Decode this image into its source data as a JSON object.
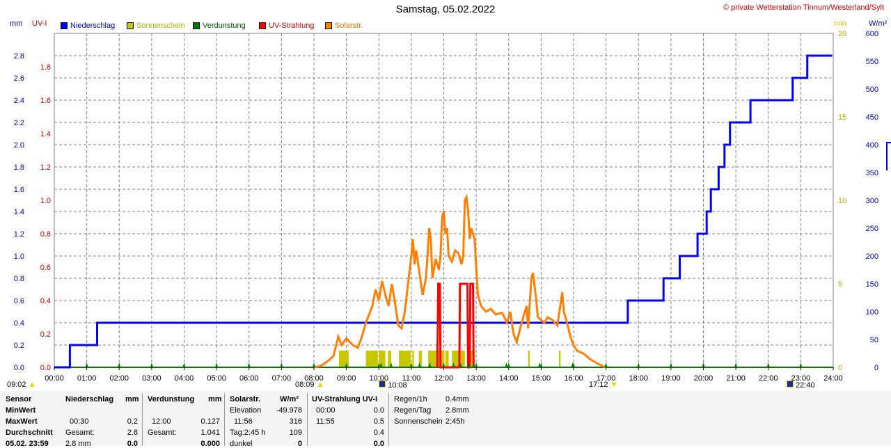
{
  "title": "Samstag, 05.02.2022",
  "copyright": "© private Wetterstation Tinnum/Westerland/Sylt",
  "axis_units": {
    "left_mm": "mm",
    "left_uvi": "UV-I",
    "right_min": "min",
    "right_wm2": "W/m²"
  },
  "legend": [
    {
      "label": "Niederschlag",
      "color": "#0000ff"
    },
    {
      "label": "Sonnenschein",
      "color": "#c8c800"
    },
    {
      "label": "Verdunstung",
      "color": "#007a00"
    },
    {
      "label": "UV-Strahlung",
      "color": "#ff0000"
    },
    {
      "label": "Solarstr.",
      "color": "#ff8000"
    }
  ],
  "colors": {
    "precip": "#0000ff",
    "uv": "#cc0000",
    "sun": "#c8c800",
    "evap": "#007a00",
    "solar": "#ff8000",
    "grid": "#808080"
  },
  "x_ticks": [
    "00:00",
    "01:00",
    "02:00",
    "03:00",
    "04:00",
    "05:00",
    "06:00",
    "07:00",
    "08:00",
    "09:00",
    "10:00",
    "11:00",
    "12:00",
    "13:00",
    "14:00",
    "15:00",
    "16:00",
    "17:00",
    "18:00",
    "19:00",
    "20:00",
    "21:00",
    "22:00",
    "23:00",
    "24:00"
  ],
  "y_ticks_mm": [
    "0.0",
    "0.2",
    "0.4",
    "0.6",
    "0.8",
    "1.0",
    "1.2",
    "1.4",
    "1.6",
    "1.8",
    "2.0",
    "2.2",
    "2.4",
    "2.6",
    "2.8"
  ],
  "y_ticks_uv": [
    "0.0",
    "0.2",
    "0.4",
    "0.6",
    "0.8",
    "1.0",
    "1.2",
    "1.4",
    "1.6",
    "1.8"
  ],
  "y_ticks_min": [
    "0",
    "5",
    "10",
    "15",
    "20"
  ],
  "y_ticks_wm2": [
    "0",
    "50",
    "100",
    "150",
    "200",
    "250",
    "300",
    "350",
    "400",
    "450",
    "500",
    "550",
    "600"
  ],
  "events": {
    "first_time": "09:02",
    "sunrise": "08:09",
    "uv_event": "10:08",
    "sunset": "17:12",
    "last_time": "22:40"
  },
  "chart_data": {
    "type": "line",
    "title": "Samstag, 05.02.2022",
    "x_range_hours": [
      0,
      24
    ],
    "ylim_mm": [
      0,
      3.0
    ],
    "ylim_uvi": [
      0,
      2.0
    ],
    "ylim_min": [
      0,
      20
    ],
    "ylim_wm2": [
      0,
      600
    ],
    "grid": true,
    "legend_position": "top",
    "series": [
      {
        "name": "Niederschlag",
        "axis": "mm",
        "step": true,
        "points": [
          [
            0,
            0
          ],
          [
            0.48,
            0
          ],
          [
            0.48,
            0.2
          ],
          [
            1.32,
            0.2
          ],
          [
            1.32,
            0.4
          ],
          [
            17.67,
            0.4
          ],
          [
            17.67,
            0.6
          ],
          [
            18.77,
            0.6
          ],
          [
            18.77,
            0.8
          ],
          [
            19.27,
            0.8
          ],
          [
            19.27,
            1.0
          ],
          [
            19.82,
            1.0
          ],
          [
            19.82,
            1.2
          ],
          [
            20.1,
            1.2
          ],
          [
            20.1,
            1.4
          ],
          [
            20.23,
            1.4
          ],
          [
            20.23,
            1.6
          ],
          [
            20.47,
            1.6
          ],
          [
            20.47,
            1.8
          ],
          [
            20.65,
            1.8
          ],
          [
            20.65,
            2.0
          ],
          [
            20.82,
            2.0
          ],
          [
            20.82,
            2.2
          ],
          [
            21.45,
            2.2
          ],
          [
            21.45,
            2.4
          ],
          [
            22.75,
            2.4
          ],
          [
            22.75,
            2.6
          ],
          [
            23.2,
            2.6
          ],
          [
            23.2,
            2.8
          ],
          [
            23.97,
            2.8
          ]
        ]
      },
      {
        "name": "UV-Strahlung",
        "axis": "uvi",
        "points": [
          [
            11.8,
            0
          ],
          [
            11.83,
            0.5
          ],
          [
            11.88,
            0.5
          ],
          [
            11.9,
            0
          ],
          [
            12.48,
            0
          ],
          [
            12.5,
            0.5
          ],
          [
            12.73,
            0.5
          ],
          [
            12.75,
            0
          ],
          [
            12.8,
            0
          ],
          [
            12.82,
            0.5
          ],
          [
            12.9,
            0.5
          ],
          [
            12.92,
            0
          ]
        ]
      },
      {
        "name": "Solarstr.",
        "axis": "wm2",
        "points": [
          [
            8.0,
            0
          ],
          [
            8.2,
            2
          ],
          [
            8.4,
            10
          ],
          [
            8.6,
            20
          ],
          [
            8.75,
            55
          ],
          [
            8.85,
            40
          ],
          [
            9.0,
            52
          ],
          [
            9.2,
            40
          ],
          [
            9.35,
            35
          ],
          [
            9.45,
            50
          ],
          [
            9.6,
            80
          ],
          [
            9.8,
            110
          ],
          [
            9.9,
            140
          ],
          [
            10.0,
            120
          ],
          [
            10.1,
            155
          ],
          [
            10.2,
            130
          ],
          [
            10.3,
            110
          ],
          [
            10.4,
            150
          ],
          [
            10.5,
            115
          ],
          [
            10.6,
            75
          ],
          [
            10.7,
            70
          ],
          [
            10.8,
            100
          ],
          [
            10.9,
            150
          ],
          [
            11.0,
            200
          ],
          [
            11.05,
            230
          ],
          [
            11.1,
            185
          ],
          [
            11.15,
            210
          ],
          [
            11.25,
            170
          ],
          [
            11.35,
            130
          ],
          [
            11.45,
            160
          ],
          [
            11.5,
            200
          ],
          [
            11.55,
            250
          ],
          [
            11.6,
            230
          ],
          [
            11.65,
            160
          ],
          [
            11.75,
            195
          ],
          [
            11.85,
            175
          ],
          [
            11.9,
            200
          ],
          [
            11.95,
            270
          ],
          [
            12.0,
            280
          ],
          [
            12.05,
            240
          ],
          [
            12.1,
            250
          ],
          [
            12.15,
            200
          ],
          [
            12.25,
            190
          ],
          [
            12.35,
            210
          ],
          [
            12.45,
            205
          ],
          [
            12.55,
            185
          ],
          [
            12.6,
            200
          ],
          [
            12.65,
            300
          ],
          [
            12.7,
            306
          ],
          [
            12.75,
            280
          ],
          [
            12.8,
            230
          ],
          [
            12.85,
            250
          ],
          [
            12.95,
            230
          ],
          [
            13.05,
            130
          ],
          [
            13.15,
            110
          ],
          [
            13.3,
            100
          ],
          [
            13.45,
            105
          ],
          [
            13.6,
            95
          ],
          [
            13.8,
            98
          ],
          [
            13.95,
            80
          ],
          [
            14.05,
            100
          ],
          [
            14.15,
            60
          ],
          [
            14.25,
            45
          ],
          [
            14.35,
            70
          ],
          [
            14.45,
            90
          ],
          [
            14.55,
            110
          ],
          [
            14.6,
            70
          ],
          [
            14.7,
            160
          ],
          [
            14.75,
            170
          ],
          [
            14.85,
            120
          ],
          [
            14.9,
            90
          ],
          [
            15.0,
            85
          ],
          [
            15.1,
            80
          ],
          [
            15.2,
            90
          ],
          [
            15.35,
            85
          ],
          [
            15.5,
            75
          ],
          [
            15.6,
            115
          ],
          [
            15.65,
            135
          ],
          [
            15.7,
            100
          ],
          [
            15.8,
            80
          ],
          [
            15.9,
            55
          ],
          [
            16.0,
            40
          ],
          [
            16.1,
            30
          ],
          [
            16.3,
            25
          ],
          [
            16.5,
            15
          ],
          [
            16.7,
            8
          ],
          [
            16.9,
            2
          ],
          [
            17.0,
            0
          ]
        ]
      },
      {
        "name": "Sonnenschein",
        "axis": "min",
        "type": "bar",
        "intervals": [
          [
            8.77,
            9.07
          ],
          [
            9.6,
            9.97
          ],
          [
            10.0,
            10.2
          ],
          [
            10.28,
            10.38
          ],
          [
            10.62,
            10.98
          ],
          [
            11.03,
            11.08
          ],
          [
            11.23,
            11.33
          ],
          [
            11.52,
            12.02
          ],
          [
            12.05,
            12.15
          ],
          [
            12.25,
            12.48
          ],
          [
            12.52,
            12.65
          ],
          [
            12.77,
            12.92
          ],
          [
            14.6,
            14.65
          ],
          [
            15.55,
            15.6
          ]
        ],
        "value": 1
      },
      {
        "name": "Verdunstung",
        "axis": "mm",
        "type": "tick",
        "x": [
          1,
          2,
          3,
          4,
          5,
          6,
          7,
          8,
          9,
          10,
          11,
          12,
          13,
          14,
          15,
          16,
          17,
          18,
          19,
          20,
          21,
          22,
          23,
          10.07,
          10.38,
          11.25,
          11.57,
          12.3,
          12.52,
          12.78,
          12.92,
          13.93,
          14.95,
          15.97
        ]
      }
    ]
  },
  "stats": {
    "col1": {
      "header": "Sensor",
      "rows": [
        "MinWert",
        "MaxWert",
        "Durchschnitt",
        "05.02. 23:59"
      ]
    },
    "col2": {
      "header": "Niederschlag",
      "unit": "mm",
      "r1_a": "",
      "r1_b": "",
      "r2_a": "00:30",
      "r2_b": "0.2",
      "r3_a": "Gesamt:",
      "r3_b": "2.8",
      "r4_a": "2.8 mm",
      "r4_b": "0.0"
    },
    "col3": {
      "header": "Verdunstung",
      "unit": "mm",
      "r1_a": "",
      "r1_b": "",
      "r2_a": "12:00",
      "r2_b": "0.127",
      "r3_a": "Gesamt:",
      "r3_b": "1.041",
      "r4_a": "",
      "r4_b": "0.000"
    },
    "col4": {
      "header": "Solarstr.",
      "unit": "W/m²",
      "r1_a": "Elevation",
      "r1_b": "-49.978",
      "r2_a": "11:56",
      "r2_b": "316",
      "r3_a": "Tag:2:45 h",
      "r3_b": "109",
      "r4_a": "dunkel",
      "r4_b": "0"
    },
    "col5": {
      "header": "UV-Strahlung UV-I",
      "r1_a": "00:00",
      "r1_b": "0.0",
      "r2_a": "11:55",
      "r2_b": "0.5",
      "r3_a": "",
      "r3_b": "0.4",
      "r4_a": "",
      "r4_b": "0.0"
    },
    "col6": {
      "rows": [
        {
          "label": "Regen/1h",
          "value": "0.4mm"
        },
        {
          "label": "Regen/Tag",
          "value": "2.8mm"
        },
        {
          "label": "Sonnenschein",
          "value": "2:45h"
        }
      ]
    },
    "side_value": "400"
  }
}
